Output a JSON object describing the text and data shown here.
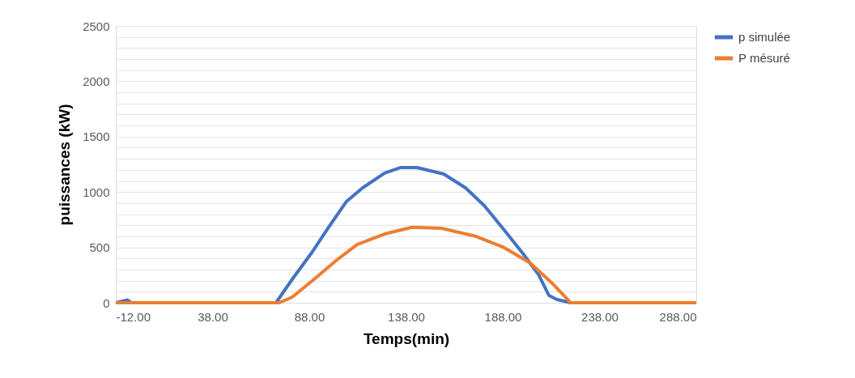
{
  "chart_data": {
    "type": "line",
    "xlabel": "Temps(min)",
    "ylabel": "puissances (kW)",
    "xlim": [
      -12,
      288
    ],
    "xticks": [
      {
        "value": -12,
        "label": "-12.00"
      },
      {
        "value": 38,
        "label": "38.00"
      },
      {
        "value": 88,
        "label": "88.00"
      },
      {
        "value": 138,
        "label": "138.00"
      },
      {
        "value": 188,
        "label": "188.00"
      },
      {
        "value": 238,
        "label": "238.00"
      },
      {
        "value": 288,
        "label": "288.00"
      }
    ],
    "ylim": [
      0,
      2500
    ],
    "yticks": [
      0,
      {
        "value": 100,
        "label": null
      },
      {
        "value": 200,
        "label": null
      },
      {
        "value": 300,
        "label": null
      },
      {
        "value": 400,
        "label": null
      },
      500,
      {
        "value": 600,
        "label": null
      },
      {
        "value": 700,
        "label": null
      },
      {
        "value": 800,
        "label": null
      },
      {
        "value": 900,
        "label": null
      },
      1000,
      {
        "value": 1100,
        "label": null
      },
      {
        "value": 1200,
        "label": null
      },
      {
        "value": 1300,
        "label": null
      },
      {
        "value": 1400,
        "label": null
      },
      1500,
      {
        "value": 1600,
        "label": null
      },
      {
        "value": 1700,
        "label": null
      },
      {
        "value": 1800,
        "label": null
      },
      {
        "value": 1900,
        "label": null
      },
      2000,
      {
        "value": 2100,
        "label": null
      },
      {
        "value": 2200,
        "label": null
      },
      {
        "value": 2300,
        "label": null
      },
      {
        "value": 2400,
        "label": null
      },
      2500
    ],
    "grid": "y",
    "legend": "right",
    "marker": "none",
    "line_style": "solid",
    "series": [
      {
        "name": "p simulée",
        "color": "#4472c4",
        "x": [
          -12,
          -6,
          -4,
          70.8,
          79.2,
          89.3,
          97.6,
          107.2,
          115.6,
          126.9,
          135.3,
          143.6,
          157.5,
          168.7,
          178.4,
          188.0,
          198.0,
          206.4,
          211.8,
          216.0,
          223.1,
          288
        ],
        "values": [
          0,
          25,
          0,
          0,
          212,
          453,
          672,
          914,
          1038,
          1170,
          1221,
          1221,
          1162,
          1038,
          877,
          672,
          453,
          256,
          66,
          29,
          0,
          0
        ]
      },
      {
        "name": "P mésuré",
        "color": "#ed7d31",
        "x": [
          -12,
          72.5,
          79.2,
          90.5,
          101.8,
          112.7,
          126.9,
          140.7,
          143.6,
          156.2,
          174.2,
          188.0,
          202.2,
          213.1,
          223.1,
          288
        ],
        "values": [
          0,
          0,
          51,
          212,
          380,
          526,
          621,
          680,
          680,
          672,
          599,
          504,
          358,
          183,
          0,
          0
        ]
      }
    ]
  }
}
